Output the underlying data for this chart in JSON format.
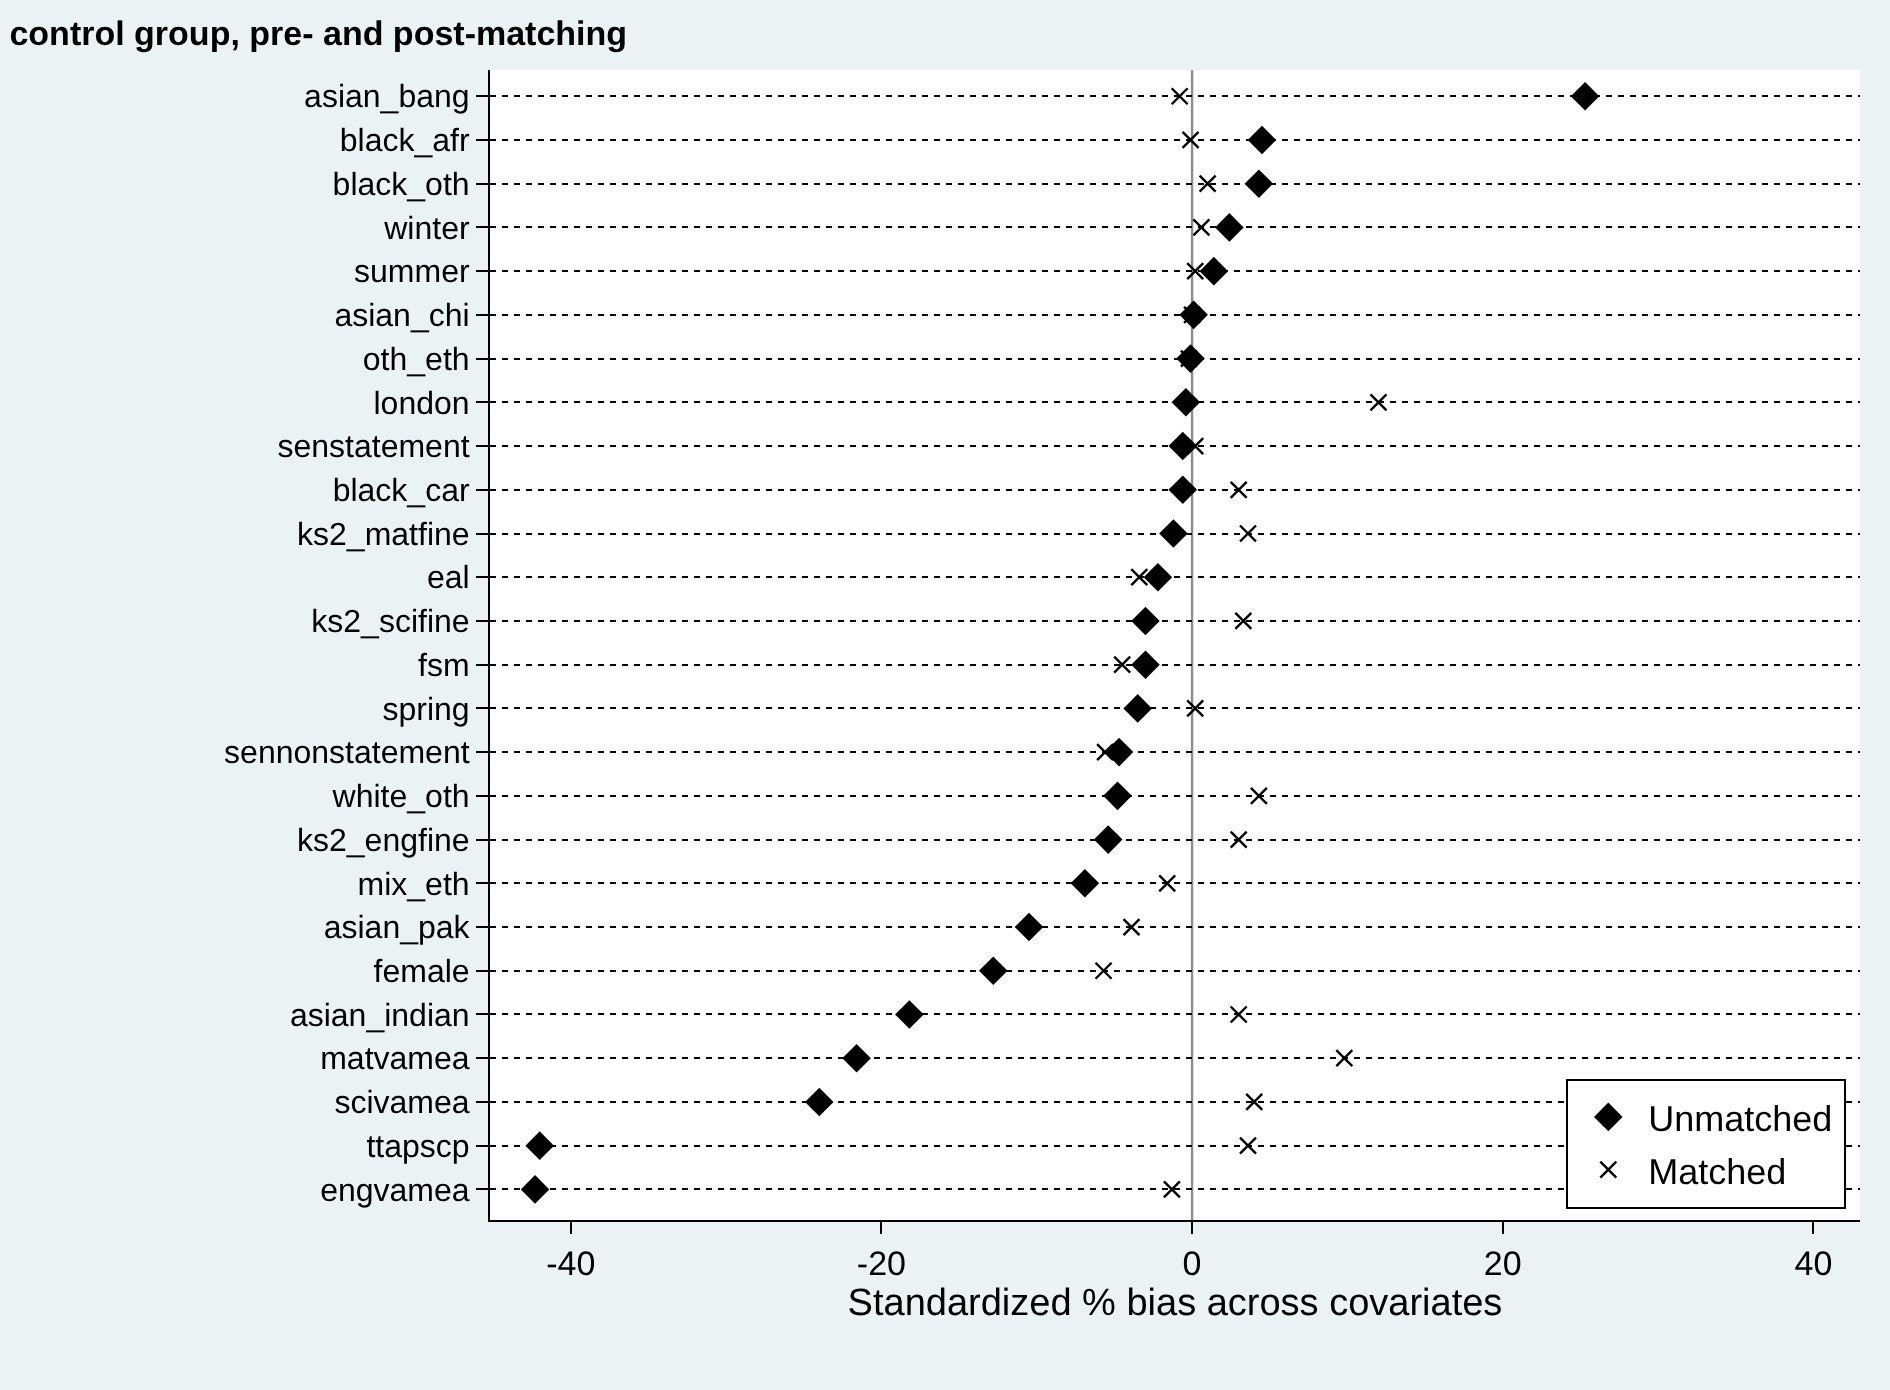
{
  "chart_data": {
    "type": "scatter",
    "title": "control group, pre- and post-matching",
    "xlabel": "Standardized % bias across covariates",
    "categories": [
      "asian_bang",
      "black_afr",
      "black_oth",
      "winter",
      "summer",
      "asian_chi",
      "oth_eth",
      "london",
      "senstatement",
      "black_car",
      "ks2_matfine",
      "eal",
      "ks2_scifine",
      "fsm",
      "spring",
      "sennonstatement",
      "white_oth",
      "ks2_engfine",
      "mix_eth",
      "asian_pak",
      "female",
      "asian_indian",
      "matvamea",
      "scivamea",
      "ttapscp",
      "engvamea"
    ],
    "series": [
      {
        "name": "Unmatched",
        "color": "#000000",
        "marker": "diamond",
        "values": [
          25.3,
          4.5,
          4.3,
          2.4,
          1.4,
          0.1,
          -0.1,
          -0.4,
          -0.6,
          -0.6,
          -1.2,
          -2.2,
          -3.0,
          -3.0,
          -3.5,
          -4.7,
          -4.8,
          -5.4,
          -6.9,
          -10.5,
          -12.8,
          -18.2,
          -21.6,
          -24.0,
          -42.0,
          -42.3
        ]
      },
      {
        "name": "Matched",
        "color": "#000000",
        "marker": "cross",
        "values": [
          -0.8,
          -0.1,
          1.0,
          0.6,
          0.2,
          0.0,
          -0.2,
          12.0,
          0.2,
          3.0,
          3.6,
          -3.4,
          3.3,
          -4.5,
          0.2,
          -5.6,
          4.3,
          3.0,
          -1.6,
          -3.9,
          -5.7,
          3.0,
          9.8,
          4.0,
          3.6,
          -1.3
        ]
      }
    ],
    "xlim": [
      -45.2,
      43
    ],
    "xticks": [
      -40,
      -20,
      0,
      20,
      40
    ],
    "ref_lines": [
      {
        "axis": "x",
        "value": 0,
        "color": "#8c8c8c"
      }
    ],
    "grid": "y",
    "legend": "bottom right",
    "orientation": "horizontal"
  }
}
